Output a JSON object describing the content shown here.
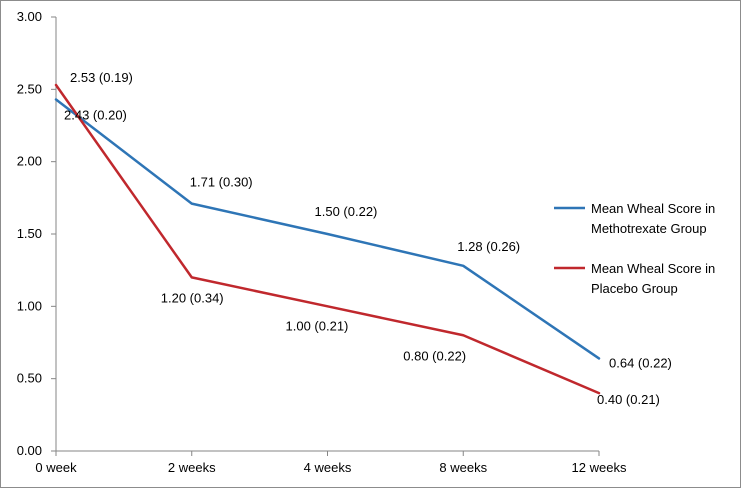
{
  "chart_data": {
    "type": "line",
    "categories": [
      "0 week",
      "2 weeks",
      "4 weeks",
      "8 weeks",
      "12 weeks"
    ],
    "ylim": [
      0,
      3
    ],
    "y_ticks": [
      "0.00",
      "0.50",
      "1.00",
      "1.50",
      "2.00",
      "2.50",
      "3.00"
    ],
    "grid": false,
    "legend_position": "right",
    "series": [
      {
        "name_lines": [
          "Mean Wheal Score in",
          "Methotrexate Group"
        ],
        "color": "#2e75b6",
        "values": [
          2.43,
          1.71,
          1.5,
          1.28,
          0.64
        ],
        "labels": [
          "2.43 (0.20)",
          "1.71 (0.30)",
          "1.50 (0.22)",
          "1.28 (0.26)",
          "0.64 (0.22)"
        ]
      },
      {
        "name_lines": [
          "Mean Wheal Score in",
          "Placebo Group"
        ],
        "color": "#c0282d",
        "values": [
          2.53,
          1.2,
          1.0,
          0.8,
          0.4
        ],
        "labels": [
          "2.53 (0.19)",
          "1.20 (0.34)",
          "1.00 (0.21)",
          "0.80 (0.22)",
          "0.40 (0.21)"
        ]
      }
    ]
  }
}
